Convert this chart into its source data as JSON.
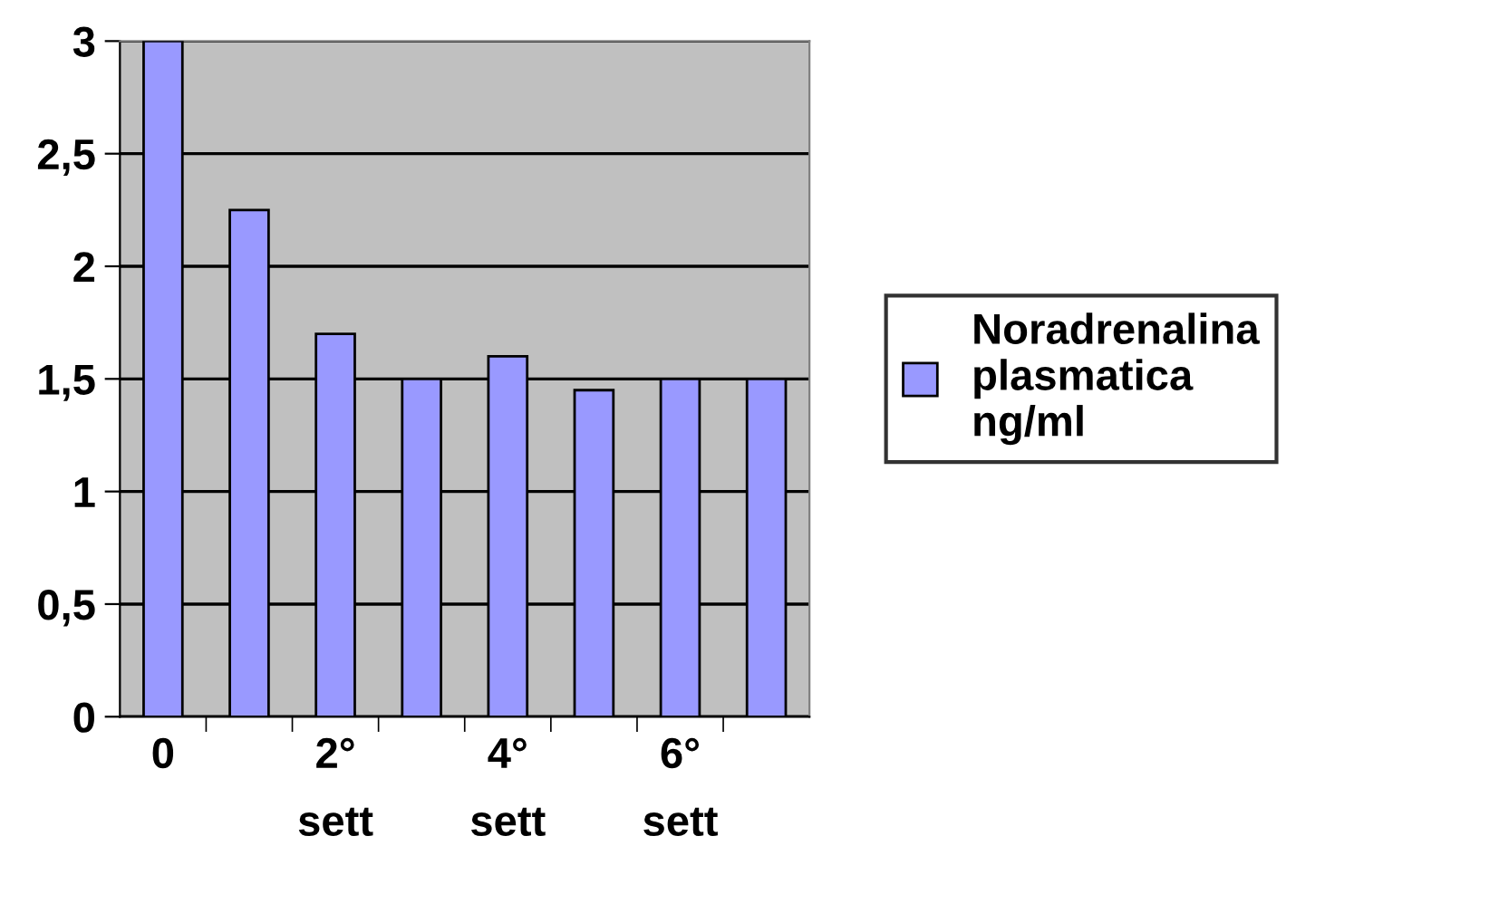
{
  "chart_data": {
    "type": "bar",
    "categories": [
      "0",
      null,
      "2°\nsett",
      null,
      "4°\nsett",
      null,
      "6°\nsett",
      null
    ],
    "series": [
      {
        "name": "Noradrenalina\nplasmatica\nng/ml",
        "color": "#9999ff",
        "values": [
          3,
          2.25,
          1.7,
          1.5,
          1.6,
          1.45,
          1.5,
          1.5
        ]
      }
    ],
    "ylim": [
      0,
      3
    ],
    "yticks": [
      0,
      {
        "value": 0.5,
        "label": "0,5"
      },
      1,
      {
        "value": 1.5,
        "label": "1,5"
      },
      2,
      {
        "value": 2.5,
        "label": "2,5"
      },
      3
    ],
    "grid": "y",
    "legend": "right"
  }
}
